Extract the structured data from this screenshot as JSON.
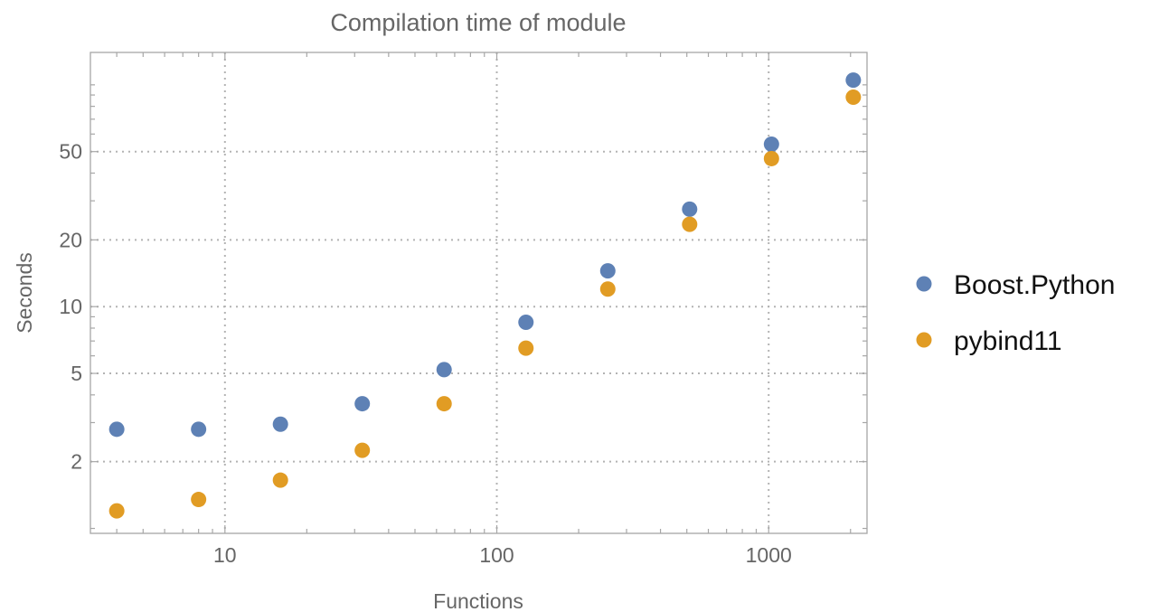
{
  "chart_data": {
    "type": "scatter",
    "title": "Compilation time of module",
    "xlabel": "Functions",
    "ylabel": "Seconds",
    "x_scale": "log",
    "y_scale": "log",
    "xlim": [
      3.2,
      2300
    ],
    "ylim": [
      0.95,
      140
    ],
    "x_ticks": [
      {
        "value": 10,
        "label": "10"
      },
      {
        "value": 100,
        "label": "100"
      },
      {
        "value": 1000,
        "label": "1000"
      }
    ],
    "y_ticks": [
      {
        "value": 2,
        "label": "2"
      },
      {
        "value": 5,
        "label": "5"
      },
      {
        "value": 10,
        "label": "10"
      },
      {
        "value": 20,
        "label": "20"
      },
      {
        "value": 50,
        "label": "50"
      }
    ],
    "grid": true,
    "legend_position": "right",
    "x": [
      4,
      8,
      16,
      32,
      64,
      128,
      256,
      512,
      1024,
      2048
    ],
    "series": [
      {
        "name": "Boost.Python",
        "color": "#5e81b5",
        "values": [
          2.8,
          2.8,
          2.95,
          3.65,
          5.2,
          8.5,
          14.5,
          27.5,
          54,
          105
        ]
      },
      {
        "name": "pybind11",
        "color": "#e19c24",
        "values": [
          1.2,
          1.35,
          1.65,
          2.25,
          3.65,
          6.5,
          12,
          23.5,
          46.5,
          88
        ]
      }
    ]
  }
}
